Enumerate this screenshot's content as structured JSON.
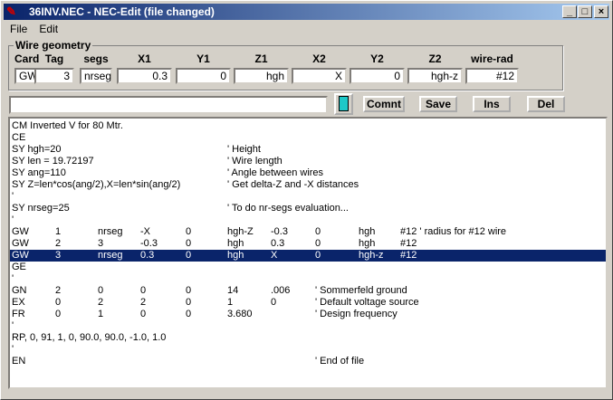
{
  "window": {
    "title": "36INV.NEC - NEC-Edit (file changed)",
    "controls": [
      "_",
      "□",
      "×"
    ]
  },
  "menu": [
    "File",
    "Edit"
  ],
  "wire_geometry": {
    "label": "Wire geometry",
    "headers": [
      "Card",
      "Tag",
      "segs",
      "X1",
      "Y1",
      "Z1",
      "X2",
      "Y2",
      "Z2",
      "wire-rad"
    ],
    "values": [
      "GW",
      "3",
      "nrseg",
      "0.3",
      "0",
      "hgh",
      "X",
      "0",
      "hgh-z",
      "#12"
    ]
  },
  "edit_input": {
    "value": ""
  },
  "buttons": {
    "calc_icon": "calculator-icon",
    "comnt": "Comnt",
    "save": "Save",
    "ins": "Ins",
    "del": "Del"
  },
  "colors": {
    "selection": "#0a246a"
  },
  "selected_row": 10,
  "lines": [
    [
      "CM Inverted V for 80 Mtr."
    ],
    [
      "CE"
    ],
    [
      "SY hgh=20",
      "",
      "",
      "",
      "",
      "' Height"
    ],
    [
      "SY len = 19.72197",
      "",
      "",
      "",
      "",
      "' Wire length"
    ],
    [
      "SY ang=110",
      "",
      "",
      "",
      "",
      "' Angle between wires"
    ],
    [
      "SY Z=len*cos(ang/2),X=len*sin(ang/2)",
      "",
      "",
      "",
      "",
      "' Get delta-Z and -X distances"
    ],
    [
      "'"
    ],
    [
      "SY nrseg=25",
      "",
      "",
      "",
      "",
      "' To do nr-segs evaluation..."
    ],
    [
      "'"
    ],
    [
      "GW",
      "1",
      "nrseg",
      "-X",
      "0",
      "hgh-Z",
      "-0.3",
      "0",
      "hgh",
      "#12 ' radius for #12 wire"
    ],
    [
      "GW",
      "2",
      "3",
      "-0.3",
      "0",
      "hgh",
      "0.3",
      "0",
      "hgh",
      "#12"
    ],
    [
      "GW",
      "3",
      "nrseg",
      "0.3",
      "0",
      "hgh",
      "X",
      "0",
      "hgh-z",
      "#12"
    ],
    [
      "GE"
    ],
    [
      "'"
    ],
    [
      "GN",
      "2",
      "0",
      "0",
      "0",
      "14",
      ".006",
      "' Sommerfeld ground"
    ],
    [
      "EX",
      "0",
      "2",
      "2",
      "0",
      "1",
      "0",
      "' Default voltage source"
    ],
    [
      "FR",
      "0",
      "1",
      "0",
      "0",
      "3.680",
      "",
      "' Design frequency"
    ],
    [
      "'"
    ],
    [
      "RP, 0, 91, 1, 0, 90.0, 90.0, -1.0, 1.0"
    ],
    [
      "'"
    ],
    [
      "EN",
      "",
      "",
      "",
      "",
      "",
      "",
      "' End of file"
    ]
  ]
}
